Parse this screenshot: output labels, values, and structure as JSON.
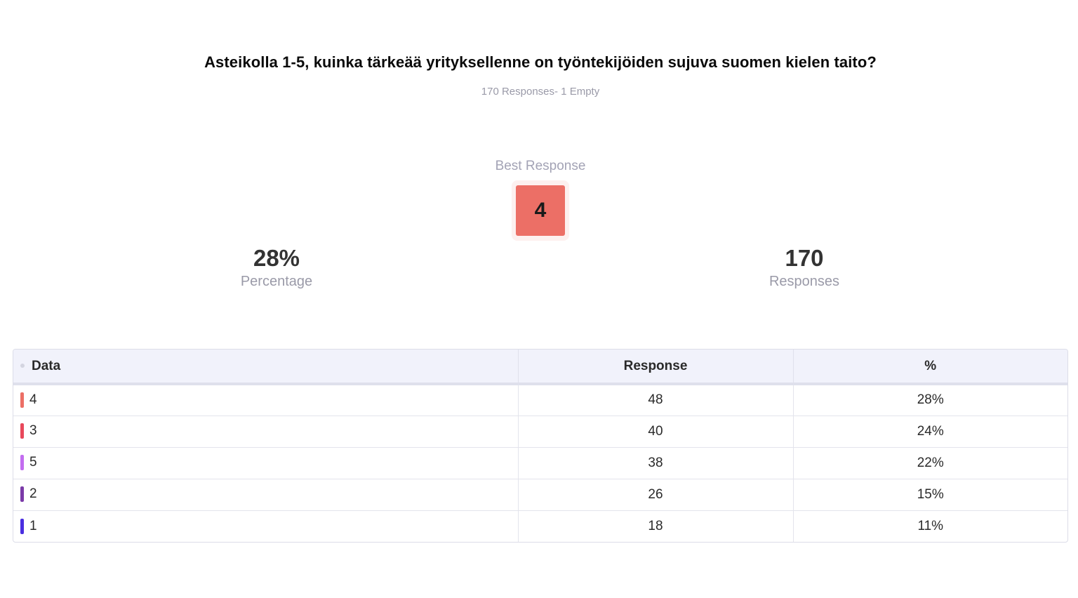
{
  "question": {
    "title": "Asteikolla 1-5, kuinka tärkeää yrityksellenne on työntekijöiden sujuva suomen kielen taito?",
    "subtitle": "170 Responses- 1 Empty"
  },
  "best": {
    "label": "Best Response",
    "value": "4",
    "color": "#ec6f66"
  },
  "stats": {
    "percentage": {
      "value": "28%",
      "label": "Percentage"
    },
    "responses": {
      "value": "170",
      "label": "Responses"
    }
  },
  "table": {
    "headers": {
      "data": "Data",
      "response": "Response",
      "percent": "%"
    },
    "rows": [
      {
        "label": "4",
        "response": "48",
        "percent": "28%",
        "color": "#ec6f66"
      },
      {
        "label": "3",
        "response": "40",
        "percent": "24%",
        "color": "#e8485b"
      },
      {
        "label": "5",
        "response": "38",
        "percent": "22%",
        "color": "#c36df0"
      },
      {
        "label": "2",
        "response": "26",
        "percent": "15%",
        "color": "#7b3aa8"
      },
      {
        "label": "1",
        "response": "18",
        "percent": "11%",
        "color": "#4a2ee0"
      }
    ]
  }
}
